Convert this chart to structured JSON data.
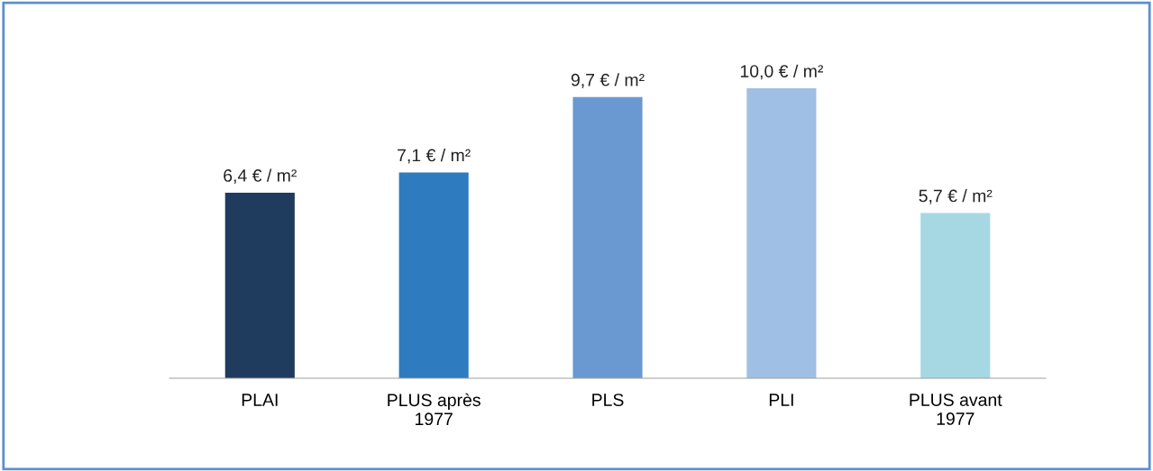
{
  "chart_data": {
    "type": "bar",
    "categories": [
      "PLAI",
      "PLUS après\n1977",
      "PLS",
      "PLI",
      "PLUS avant\n1977"
    ],
    "values": [
      6.4,
      7.1,
      9.7,
      10.0,
      5.7
    ],
    "colors": [
      "#1f3b5e",
      "#2f7bbf",
      "#6a99d1",
      "#a0bfe4",
      "#a6d8e4"
    ],
    "value_labels": [
      "6,4 € / m²",
      "7,1 € / m²",
      "9,7 € / m²",
      "10,0 € / m²",
      "5,7 € / m²"
    ],
    "grid": false,
    "legend": false
  }
}
